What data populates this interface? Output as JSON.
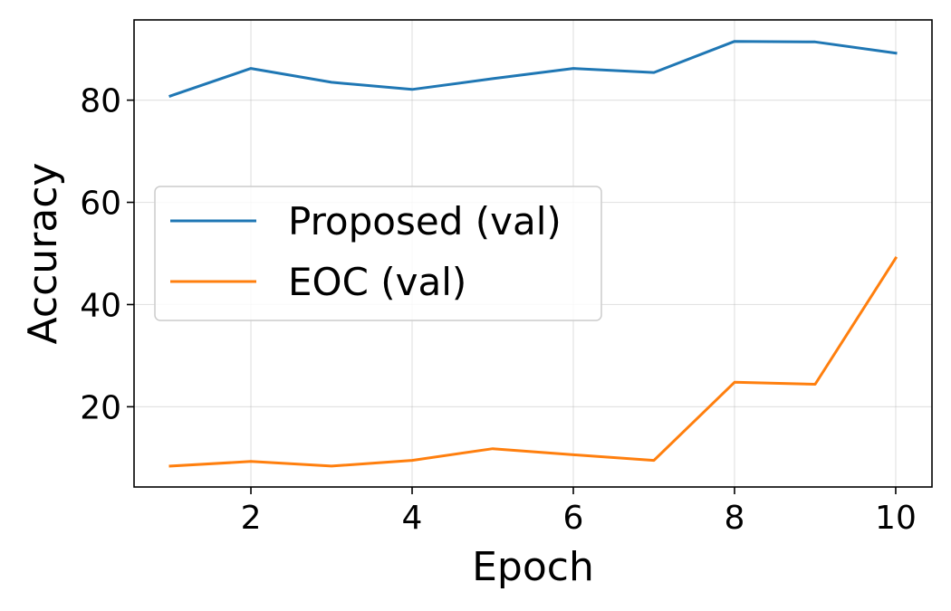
{
  "chart_data": {
    "type": "line",
    "title": "",
    "xlabel": "Epoch",
    "ylabel": "Accuracy",
    "xlim": [
      0.55,
      10.45
    ],
    "ylim": [
      4.3,
      95.7
    ],
    "xticks": [
      2,
      4,
      6,
      8,
      10
    ],
    "yticks": [
      20,
      40,
      60,
      80
    ],
    "grid": true,
    "legend_position": "center-left",
    "x": [
      1,
      2,
      3,
      4,
      5,
      6,
      7,
      8,
      9,
      10
    ],
    "series": [
      {
        "name": "Proposed (val)",
        "color": "#1f77b4",
        "values": [
          80.8,
          86.2,
          83.5,
          82.1,
          84.2,
          86.2,
          85.4,
          91.5,
          91.4,
          89.2
        ]
      },
      {
        "name": "EOC (val)",
        "color": "#ff7f0e",
        "values": [
          8.4,
          9.3,
          8.4,
          9.5,
          11.8,
          10.6,
          9.5,
          24.8,
          24.4,
          49.1
        ]
      }
    ]
  }
}
